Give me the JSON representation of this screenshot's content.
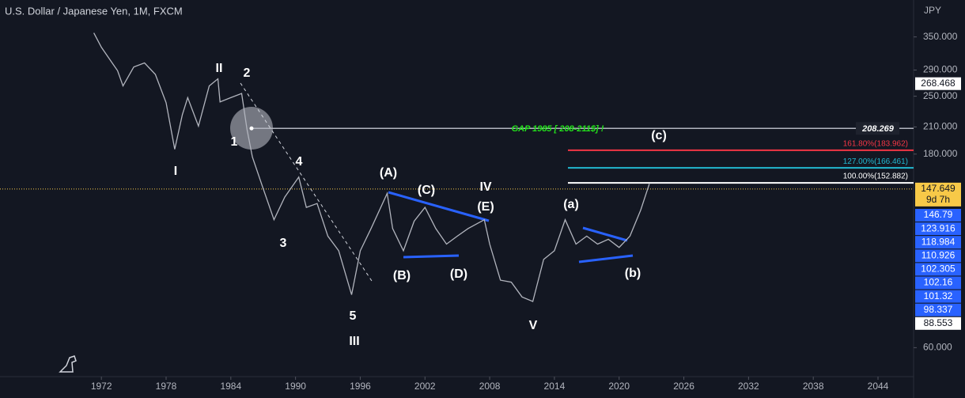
{
  "header": {
    "title": "U.S. Dollar / Japanese Yen, 1M, FXCM"
  },
  "chart_data": {
    "type": "line",
    "log_scale": true,
    "y_axis_label": "JPY",
    "x": [
      1971.3,
      1972,
      1973,
      1973.5,
      1974,
      1975,
      1976,
      1977,
      1978,
      1978.8,
      1979.5,
      1980,
      1981,
      1982,
      1982.8,
      1983,
      1984,
      1985,
      1985.5,
      1986,
      1987,
      1988,
      1989,
      1990.3,
      1991,
      1992,
      1993,
      1994,
      1995.2,
      1996,
      1997,
      1998.5,
      1999,
      2000,
      2001,
      2002,
      2003,
      2004,
      2005,
      2006,
      2007.5,
      2008,
      2009,
      2010,
      2011,
      2012,
      2013,
      2014,
      2015,
      2016,
      2017,
      2018,
      2019,
      2020,
      2021,
      2022,
      2022.8
    ],
    "values": [
      358,
      330,
      302,
      289,
      265,
      295,
      302,
      283,
      241,
      185,
      225,
      248,
      211,
      265,
      276,
      242,
      248,
      254,
      207,
      177,
      148,
      124,
      141,
      158,
      133,
      136,
      113,
      104,
      81,
      104,
      118,
      144,
      118,
      104,
      123,
      133,
      118,
      108,
      113,
      118,
      124,
      108,
      88,
      87,
      80,
      78,
      99,
      104,
      124,
      108,
      113,
      108,
      111,
      106,
      113,
      131,
      152
    ],
    "color": "#b2b5be",
    "xlim": [
      1962.6,
      2047.3
    ],
    "xticks": [
      1972,
      1978,
      1984,
      1990,
      1996,
      2002,
      2008,
      2014,
      2020,
      2026,
      2032,
      2038,
      2044
    ],
    "ylim": [
      50.9,
      431.6
    ],
    "yticks": [
      {
        "value": 350,
        "label": "350.000"
      },
      {
        "value": 290,
        "label": "290.000"
      },
      {
        "value": 250,
        "label": "250.000"
      },
      {
        "value": 210,
        "label": "210.000"
      },
      {
        "value": 180,
        "label": "180.000"
      },
      {
        "value": 60,
        "label": "60.000"
      }
    ],
    "annotations": [
      "I",
      "II",
      "2",
      "1",
      "4",
      "3",
      "5",
      "III",
      "(A)",
      "(C)",
      "IV",
      "(E)",
      "(B)",
      "(D)",
      "V",
      "(a)",
      "(b)",
      "(c)"
    ],
    "gap": {
      "label": "GAP 1985 [ 208-211$] !",
      "value": 208.269,
      "color": "#22e01b"
    },
    "levels": [
      {
        "label": "161.80%(183.962)",
        "value": 183.962,
        "color": "#f23645"
      },
      {
        "label": "127.00%(166.461)",
        "value": 166.461,
        "color": "#22b8d0"
      },
      {
        "label": "100.00%(152.882)",
        "value": 152.882,
        "color": "#ffffff"
      }
    ],
    "current_price": {
      "value": 147.649,
      "countdown": "9d 7h",
      "color": "#f7c948"
    },
    "price_labels": [
      {
        "value": 268.468,
        "bg": "#ffffff",
        "fg": "#131722"
      },
      {
        "value": 146.79,
        "bg": "#2962ff",
        "fg": "#ffffff"
      },
      {
        "value": 123.916,
        "bg": "#2962ff",
        "fg": "#ffffff"
      },
      {
        "value": 118.984,
        "bg": "#2962ff",
        "fg": "#ffffff"
      },
      {
        "value": 110.926,
        "bg": "#2962ff",
        "fg": "#ffffff"
      },
      {
        "value": 102.305,
        "bg": "#2962ff",
        "fg": "#ffffff"
      },
      {
        "value": 102.16,
        "bg": "#2962ff",
        "fg": "#ffffff"
      },
      {
        "value": 101.32,
        "bg": "#2962ff",
        "fg": "#ffffff"
      },
      {
        "value": 98.337,
        "bg": "#2962ff",
        "fg": "#ffffff"
      },
      {
        "value": 88.553,
        "bg": "#ffffff",
        "fg": "#131722"
      }
    ]
  }
}
